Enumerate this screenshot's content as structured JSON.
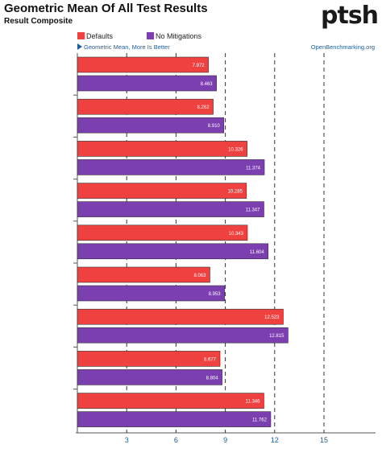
{
  "header": {
    "title": "Geometric Mean Of All Test Results",
    "subtitle": "Result Composite",
    "logo_text": "ptsh"
  },
  "note": "Geometric Mean, More Is Better",
  "source": "OpenBenchmarking.org",
  "colors": {
    "defaults": "#f04141",
    "no_mitigations": "#7b3fb0"
  },
  "chart_data": {
    "type": "bar",
    "orientation": "horizontal",
    "title": "Geometric Mean Of All Test Results",
    "subtitle": "Result Composite",
    "xlim": [
      0,
      18
    ],
    "x_ticks": [
      "3",
      "6",
      "9",
      "12",
      "15"
    ],
    "grid": "vertical dashed",
    "legend_placement": "top-left",
    "groups": 9,
    "series": [
      {
        "name": "Defaults",
        "color": "#f04141",
        "values": [
          7.972,
          8.262,
          10.326,
          10.285,
          10.343,
          8.063,
          12.523,
          8.677,
          11.346
        ]
      },
      {
        "name": "No Mitigations",
        "color": "#7b3fb0",
        "values": [
          8.463,
          8.91,
          11.374,
          11.347,
          11.604,
          8.953,
          12.815,
          8.804,
          11.762
        ]
      }
    ],
    "value_labels": [
      [
        "7.972",
        "8.262",
        "10.326",
        "10.285",
        "10.343",
        "8.063",
        "12.523",
        "8.677",
        "11.346"
      ],
      [
        "8.463",
        "8.910",
        "11.374",
        "11.347",
        "11.604",
        "8.953",
        "12.815",
        "8.804",
        "11.762"
      ]
    ]
  }
}
